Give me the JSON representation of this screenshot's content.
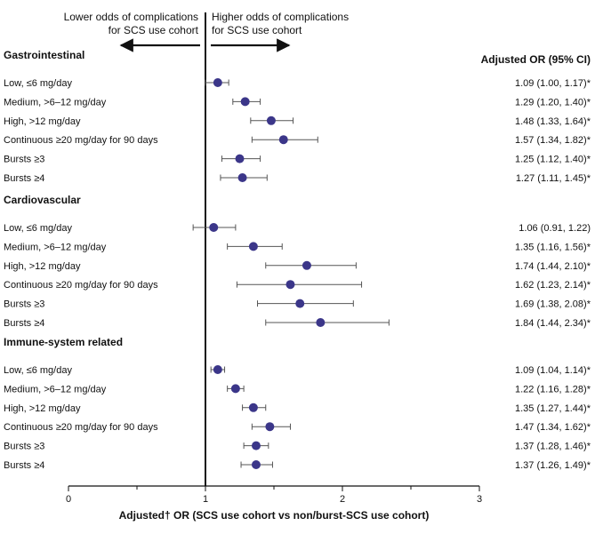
{
  "chart_data": {
    "type": "forest",
    "xlabel": "Adjusted† OR (SCS use cohort vs non/burst-SCS use cohort)",
    "xlim": [
      0,
      3
    ],
    "xticks": [
      "0",
      "1",
      "2",
      "3"
    ],
    "reference_line": 1,
    "annotation_left": [
      "Lower odds of complications",
      "for SCS use cohort"
    ],
    "annotation_right": [
      "Higher odds of complications",
      "for SCS use cohort"
    ],
    "value_header": "Adjusted OR (95% CI)",
    "groups": [
      {
        "name": "Gastrointestinal",
        "rows": [
          {
            "label": "Low, ≤6 mg/day",
            "or": 1.09,
            "lo": 1.0,
            "hi": 1.17,
            "text": "1.09 (1.00, 1.17)*"
          },
          {
            "label": "Medium, >6–12 mg/day",
            "or": 1.29,
            "lo": 1.2,
            "hi": 1.4,
            "text": "1.29 (1.20, 1.40)*"
          },
          {
            "label": "High, >12 mg/day",
            "or": 1.48,
            "lo": 1.33,
            "hi": 1.64,
            "text": "1.48 (1.33, 1.64)*"
          },
          {
            "label": "Continuous ≥20 mg/day for 90 days",
            "or": 1.57,
            "lo": 1.34,
            "hi": 1.82,
            "text": "1.57 (1.34, 1.82)*"
          },
          {
            "label": "Bursts ≥3",
            "or": 1.25,
            "lo": 1.12,
            "hi": 1.4,
            "text": "1.25 (1.12, 1.40)*"
          },
          {
            "label": "Bursts ≥4",
            "or": 1.27,
            "lo": 1.11,
            "hi": 1.45,
            "text": "1.27 (1.11, 1.45)*"
          }
        ]
      },
      {
        "name": "Cardiovascular",
        "rows": [
          {
            "label": "Low, ≤6 mg/day",
            "or": 1.06,
            "lo": 0.91,
            "hi": 1.22,
            "text": "1.06 (0.91, 1.22)"
          },
          {
            "label": "Medium, >6–12 mg/day",
            "or": 1.35,
            "lo": 1.16,
            "hi": 1.56,
            "text": "1.35 (1.16, 1.56)*"
          },
          {
            "label": "High, >12 mg/day",
            "or": 1.74,
            "lo": 1.44,
            "hi": 2.1,
            "text": "1.74 (1.44, 2.10)*"
          },
          {
            "label": "Continuous ≥20 mg/day for 90 days",
            "or": 1.62,
            "lo": 1.23,
            "hi": 2.14,
            "text": "1.62 (1.23, 2.14)*"
          },
          {
            "label": "Bursts ≥3",
            "or": 1.69,
            "lo": 1.38,
            "hi": 2.08,
            "text": "1.69 (1.38, 2.08)*"
          },
          {
            "label": "Bursts ≥4",
            "or": 1.84,
            "lo": 1.44,
            "hi": 2.34,
            "text": "1.84 (1.44, 2.34)*"
          }
        ]
      },
      {
        "name": "Immune-system related",
        "rows": [
          {
            "label": "Low, ≤6 mg/day",
            "or": 1.09,
            "lo": 1.04,
            "hi": 1.14,
            "text": "1.09 (1.04, 1.14)*"
          },
          {
            "label": "Medium, >6–12 mg/day",
            "or": 1.22,
            "lo": 1.16,
            "hi": 1.28,
            "text": "1.22 (1.16, 1.28)*"
          },
          {
            "label": "High, >12 mg/day",
            "or": 1.35,
            "lo": 1.27,
            "hi": 1.44,
            "text": "1.35 (1.27, 1.44)*"
          },
          {
            "label": "Continuous ≥20 mg/day for 90 days",
            "or": 1.47,
            "lo": 1.34,
            "hi": 1.62,
            "text": "1.47 (1.34, 1.62)*"
          },
          {
            "label": "Bursts ≥3",
            "or": 1.37,
            "lo": 1.28,
            "hi": 1.46,
            "text": "1.37 (1.28, 1.46)*"
          },
          {
            "label": "Bursts ≥4",
            "or": 1.37,
            "lo": 1.26,
            "hi": 1.49,
            "text": "1.37 (1.26, 1.49)*"
          }
        ]
      }
    ]
  },
  "colors": {
    "marker": "#3b3689",
    "ci_line": "#555555",
    "axis": "#111111",
    "text": "#111111"
  }
}
